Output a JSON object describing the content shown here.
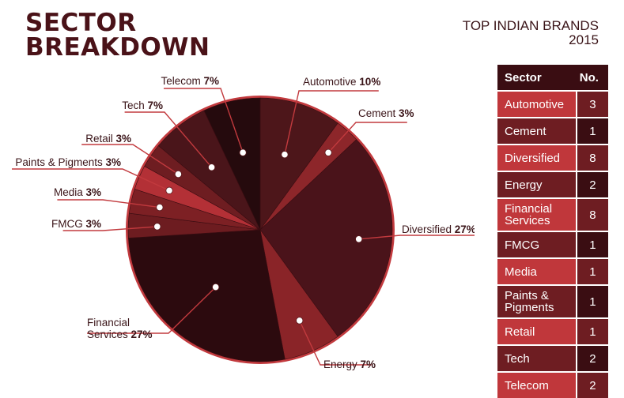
{
  "title_lines": [
    "SECTOR",
    "BREAKDOWN"
  ],
  "subtitle_lines": [
    "TOP INDIAN BRANDS",
    "2015"
  ],
  "chart_data": {
    "type": "pie",
    "title": "SECTOR BREAKDOWN",
    "slices": [
      {
        "name": "Automotive",
        "value": 10,
        "pct_label": "10%",
        "color": "#4d161a"
      },
      {
        "name": "Cement",
        "value": 3,
        "pct_label": "3%",
        "color": "#8d262a"
      },
      {
        "name": "Diversified",
        "value": 27,
        "pct_label": "27%",
        "color": "#4a131a"
      },
      {
        "name": "Energy",
        "value": 7,
        "pct_label": "7%",
        "color": "#8a2428"
      },
      {
        "name": "Financial Services",
        "value": 27,
        "pct_label": "27%",
        "color": "#2c0a0e"
      },
      {
        "name": "FMCG",
        "value": 3,
        "pct_label": "3%",
        "color": "#6d1c20"
      },
      {
        "name": "Media",
        "value": 3,
        "pct_label": "3%",
        "color": "#7d2024"
      },
      {
        "name": "Paints & Pigments",
        "value": 3,
        "pct_label": "3%",
        "color": "#b33036"
      },
      {
        "name": "Retail",
        "value": 3,
        "pct_label": "3%",
        "color": "#6e1d21"
      },
      {
        "name": "Tech",
        "value": 7,
        "pct_label": "7%",
        "color": "#4a151a"
      },
      {
        "name": "Telecom",
        "value": 7,
        "pct_label": "7%",
        "color": "#250a0d"
      }
    ],
    "rim_color": "#c23a3e",
    "leader_color": "#c23a3e"
  },
  "table": {
    "headers": [
      "Sector",
      "No."
    ],
    "rows": [
      {
        "sector": "Automotive",
        "count": "3"
      },
      {
        "sector": "Cement",
        "count": "1"
      },
      {
        "sector": "Diversified",
        "count": "8"
      },
      {
        "sector": "Energy",
        "count": "2"
      },
      {
        "sector": "Financial Services",
        "count": "8"
      },
      {
        "sector": "FMCG",
        "count": "1"
      },
      {
        "sector": "Media",
        "count": "1"
      },
      {
        "sector": "Paints & Pigments",
        "count": "1"
      },
      {
        "sector": "Retail",
        "count": "1"
      },
      {
        "sector": "Tech",
        "count": "2"
      },
      {
        "sector": "Telecom",
        "count": "2"
      }
    ],
    "colors": {
      "header": "#3a0d12",
      "light_cell": "#c0373b",
      "dark_cell": "#6e1d22",
      "num_light": "#6e1d22",
      "num_dark": "#3a0d12"
    }
  }
}
